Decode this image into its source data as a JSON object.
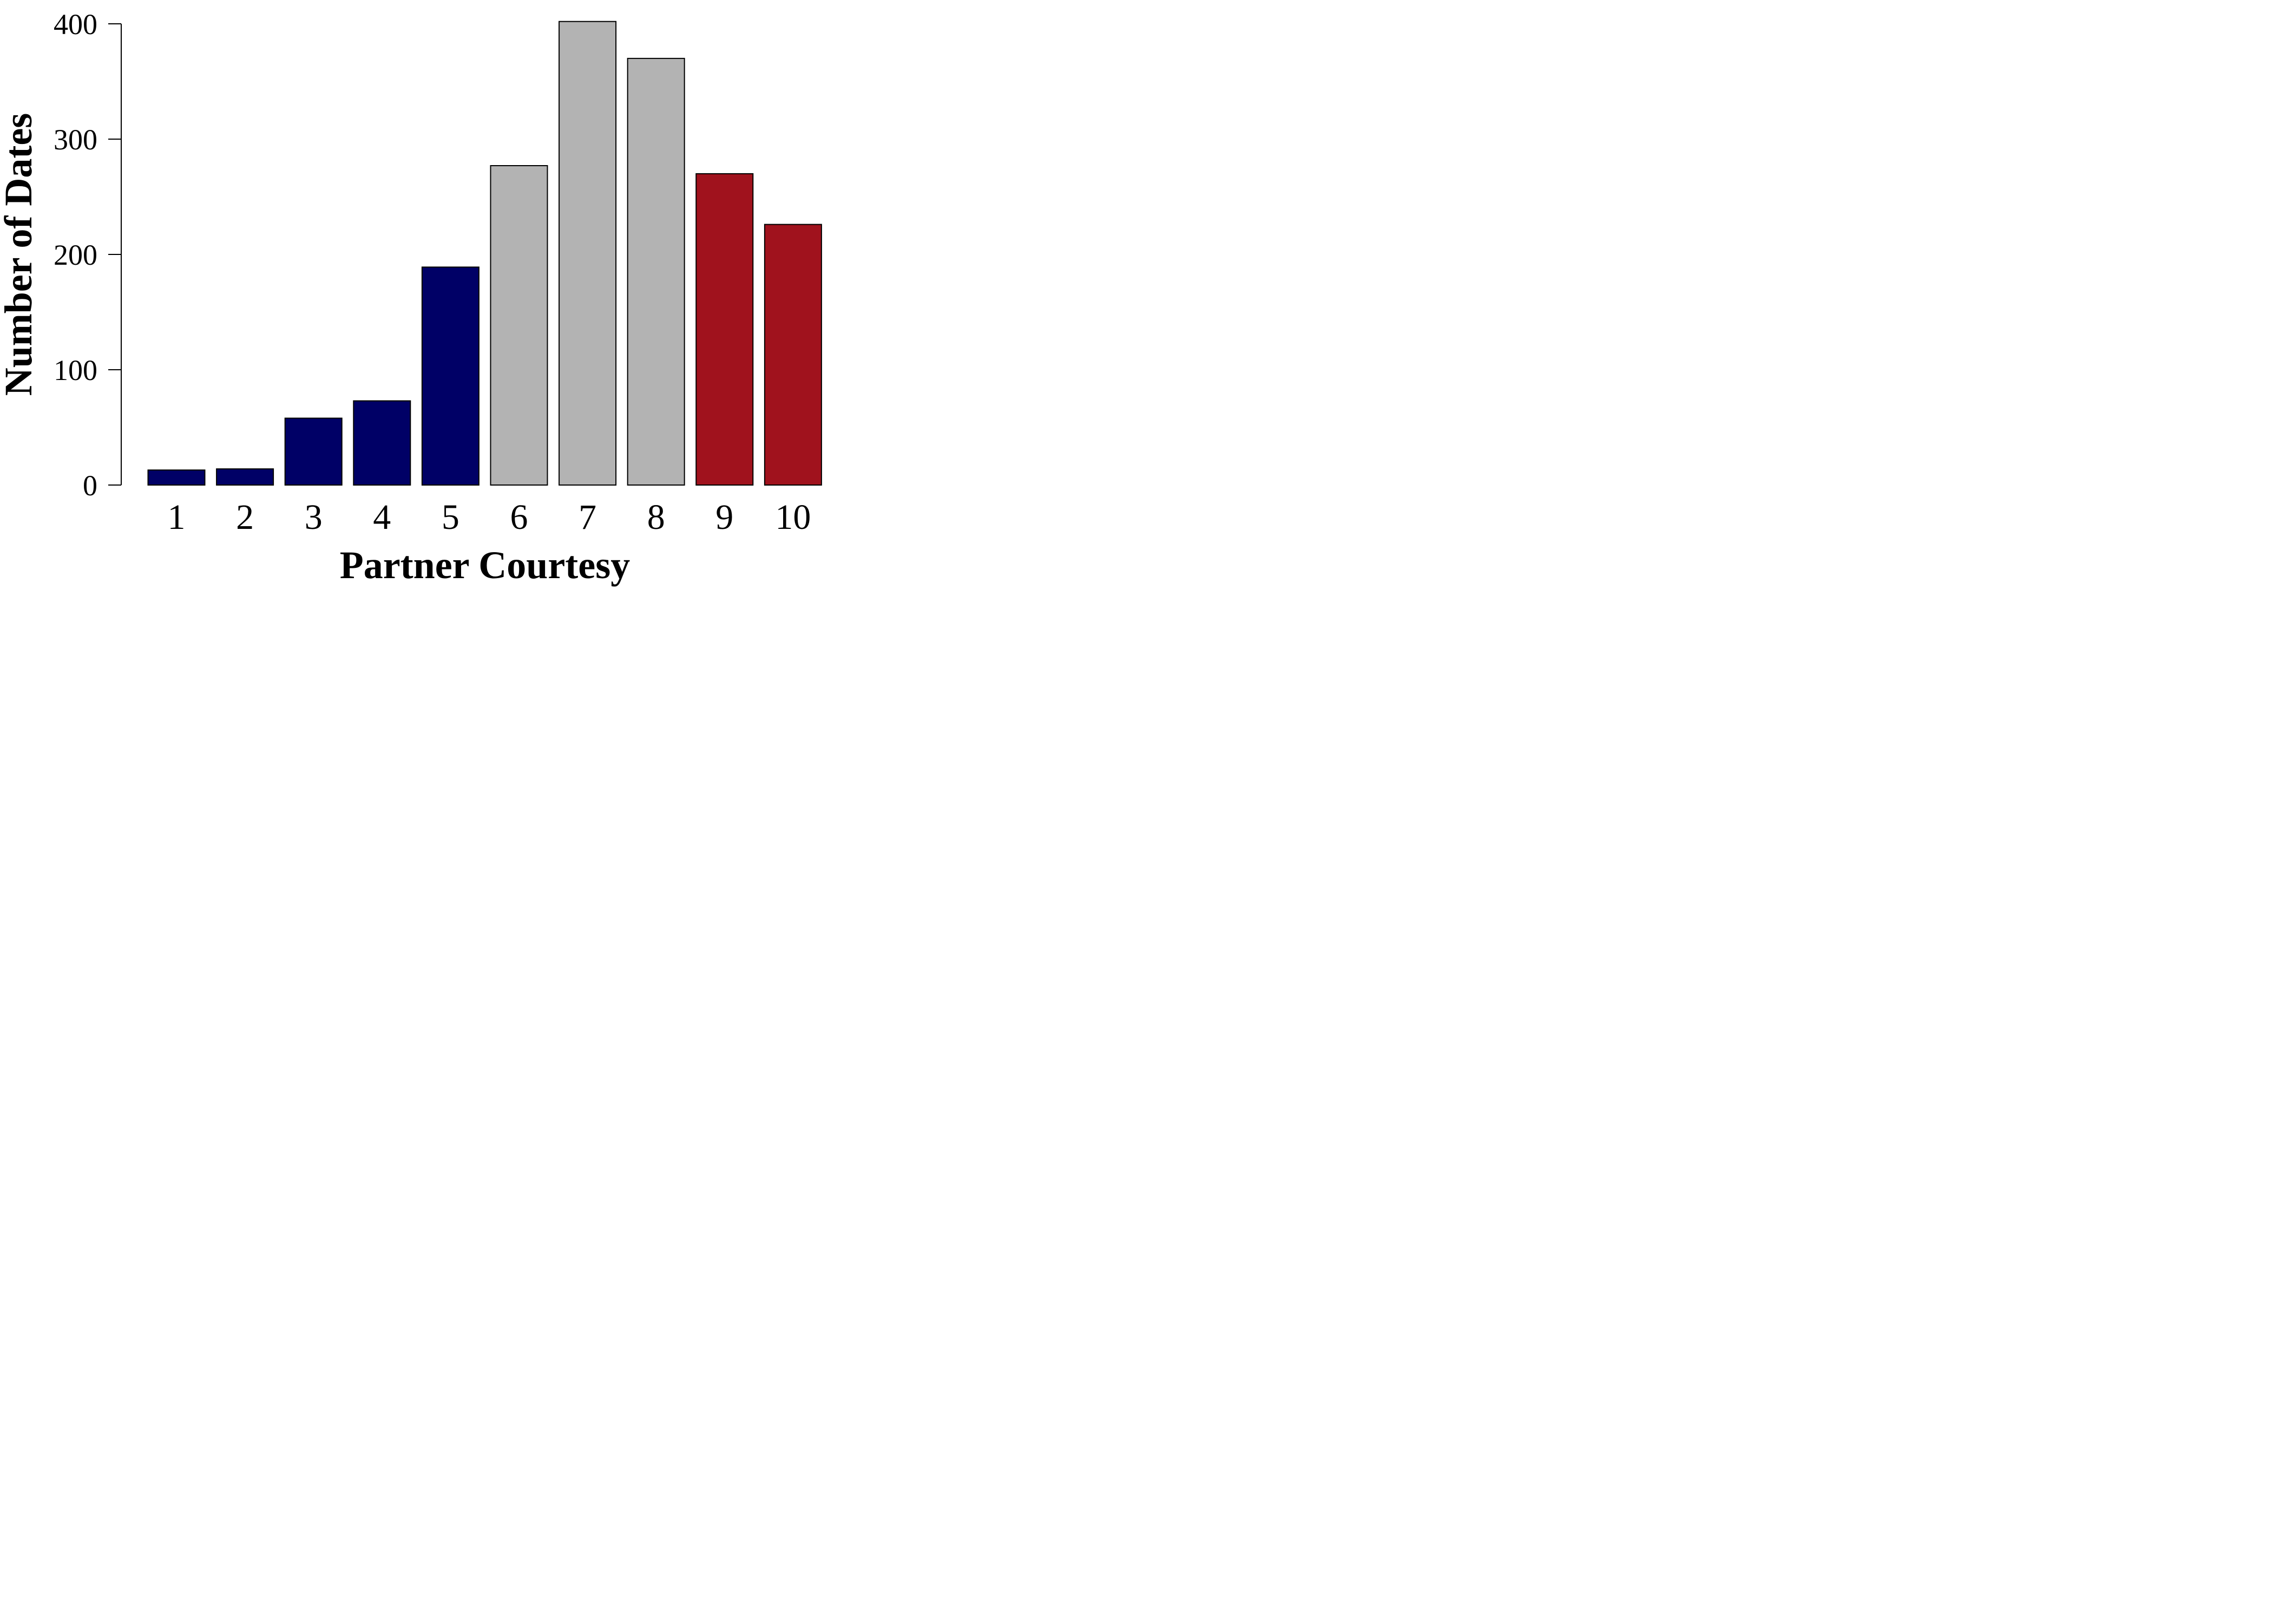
{
  "chart_data": {
    "type": "bar",
    "title": "",
    "xlabel": "Partner Courtesy",
    "ylabel": "Number of Dates",
    "categories": [
      "1",
      "2",
      "3",
      "4",
      "5",
      "6",
      "7",
      "8",
      "9",
      "10"
    ],
    "values": [
      13,
      14,
      58,
      73,
      189,
      277,
      402,
      370,
      270,
      226
    ],
    "bar_colors": [
      "#000066",
      "#000066",
      "#000066",
      "#000066",
      "#000066",
      "#b3b3b3",
      "#b3b3b3",
      "#b3b3b3",
      "#a0121d",
      "#a0121d"
    ],
    "bar_outline_color": "#000000",
    "ylim": [
      0,
      400
    ],
    "yticks": [
      0,
      100,
      200,
      300,
      400
    ],
    "grid": false,
    "legend": "none"
  }
}
